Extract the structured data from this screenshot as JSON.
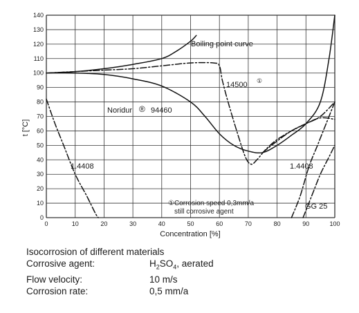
{
  "chart_data": {
    "type": "line",
    "xlabel": "Concentration [%]",
    "ylabel": "t [°C]",
    "xlim": [
      0,
      100
    ],
    "ylim": [
      0,
      140
    ],
    "x_ticks": [
      "0",
      "10",
      "20",
      "30",
      "40",
      "50",
      "60",
      "70",
      "80",
      "90",
      "100"
    ],
    "y_ticks": [
      "0",
      "10",
      "20",
      "30",
      "40",
      "50",
      "60",
      "70",
      "80",
      "90",
      "100",
      "110",
      "120",
      "130",
      "140"
    ],
    "grid": true,
    "series": [
      {
        "name": "Boiling point curve",
        "style": "solid",
        "points": [
          [
            0,
            100
          ],
          [
            10,
            101
          ],
          [
            20,
            103
          ],
          [
            30,
            106
          ],
          [
            40,
            110
          ],
          [
            45,
            115
          ],
          [
            50,
            122
          ],
          [
            52,
            126
          ]
        ]
      },
      {
        "name": "14500",
        "marker": "①",
        "style": "dash-dot",
        "points": [
          [
            0,
            100
          ],
          [
            10,
            101
          ],
          [
            20,
            102
          ],
          [
            30,
            103
          ],
          [
            40,
            105
          ],
          [
            50,
            107
          ],
          [
            58,
            107
          ],
          [
            60,
            105
          ],
          [
            61,
            95
          ],
          [
            63,
            80
          ],
          [
            66,
            60
          ],
          [
            69,
            42
          ],
          [
            71,
            37
          ],
          [
            73,
            40
          ],
          [
            76,
            47
          ],
          [
            80,
            54
          ],
          [
            85,
            60
          ],
          [
            90,
            65
          ],
          [
            95,
            70
          ],
          [
            100,
            80
          ]
        ]
      },
      {
        "name": "Noridur ® 94460",
        "style": "solid",
        "points": [
          [
            0,
            100
          ],
          [
            10,
            100
          ],
          [
            20,
            99
          ],
          [
            30,
            96
          ],
          [
            40,
            91
          ],
          [
            50,
            80
          ],
          [
            55,
            70
          ],
          [
            60,
            58
          ],
          [
            65,
            50
          ],
          [
            70,
            46
          ],
          [
            75,
            45
          ],
          [
            80,
            50
          ],
          [
            85,
            57
          ],
          [
            90,
            65
          ],
          [
            95,
            80
          ],
          [
            98,
            110
          ],
          [
            100,
            140
          ]
        ]
      },
      {
        "name": "1.4408",
        "style": "dash-dot",
        "points": [
          [
            0,
            82
          ],
          [
            3,
            65
          ],
          [
            6,
            50
          ],
          [
            10,
            30
          ],
          [
            14,
            15
          ],
          [
            17,
            3
          ],
          [
            18,
            0
          ]
        ]
      },
      {
        "name": "1.4408",
        "style": "dash-dot",
        "points": [
          [
            75,
            45
          ],
          [
            80,
            53
          ],
          [
            85,
            60
          ],
          [
            90,
            65
          ],
          [
            95,
            69
          ],
          [
            100,
            68
          ]
        ]
      },
      {
        "name": "1.4408",
        "style": "dash-dot",
        "points": [
          [
            85,
            0
          ],
          [
            88,
            15
          ],
          [
            91,
            35
          ],
          [
            94,
            50
          ],
          [
            97,
            65
          ],
          [
            100,
            80
          ]
        ]
      },
      {
        "name": "GG 25",
        "style": "dash-dot",
        "points": [
          [
            89,
            0
          ],
          [
            92,
            15
          ],
          [
            95,
            30
          ],
          [
            98,
            42
          ],
          [
            100,
            50
          ]
        ]
      }
    ],
    "annotations": {
      "boiling": "Boiling point curve",
      "l14500": "14500",
      "l14500_sup": "①",
      "noridur_a": "Noridur",
      "noridur_reg": "®",
      "noridur_b": "94460",
      "l14408_left": "1.4408",
      "l14408_right": "1.4408",
      "gg25": "GG 25",
      "note_line1": "①Corrosion speed 0,3mm/a",
      "note_line2": "still corrosive agent"
    }
  },
  "caption": {
    "title": "Isocorrosion of different materials",
    "rows": [
      {
        "label": "Corrosive agent:",
        "value_prefix": "H",
        "value_sub1": "2",
        "value_mid": "SO",
        "value_sub2": "4",
        "value_suffix": ", aerated"
      },
      {
        "label": "Flow velocity:",
        "value": "10 m/s"
      },
      {
        "label": "Corrosion rate:",
        "value": "0,5 mm/a"
      }
    ]
  }
}
